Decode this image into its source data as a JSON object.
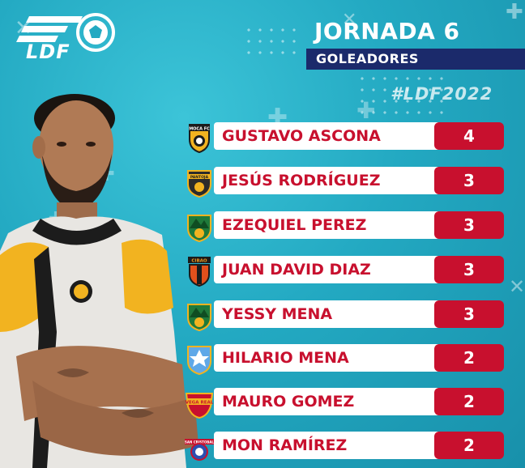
{
  "brand": {
    "logo_text": "LDF"
  },
  "header": {
    "title": "JORNADA 6",
    "subtitle": "GOLEADORES",
    "hashtag": "#LDF2022"
  },
  "scorers": [
    {
      "name": "GUSTAVO ASCONA",
      "goals": "4",
      "crest": "moca-fc-crest"
    },
    {
      "name": "JESÚS RODRÍGUEZ",
      "goals": "3",
      "crest": "pantoja-crest"
    },
    {
      "name": "EZEQUIEL PEREZ",
      "goals": "3",
      "crest": "jarabacoa-crest"
    },
    {
      "name": "JUAN DAVID DIAZ",
      "goals": "3",
      "crest": "cibao-fc-crest"
    },
    {
      "name": "YESSY MENA",
      "goals": "3",
      "crest": "jarabacoa-crest"
    },
    {
      "name": "HILARIO MENA",
      "goals": "2",
      "crest": "atletico-pantoja-blue-crest"
    },
    {
      "name": "MAURO GOMEZ",
      "goals": "2",
      "crest": "vega-real-crest"
    },
    {
      "name": "MON RAMÍREZ",
      "goals": "2",
      "crest": "san-cristobal-crest"
    }
  ],
  "crest_labels": {
    "moca": "MOCA FC",
    "pantoja": "PANTOJA",
    "cibao": "CIBAO",
    "vega": "VEGA REAL",
    "sancristobal": "SAN CRISTOBAL"
  },
  "colors": {
    "background": "#23a9c2",
    "accent_red": "#c8102e",
    "navy": "#1b2a6b",
    "white": "#ffffff"
  }
}
